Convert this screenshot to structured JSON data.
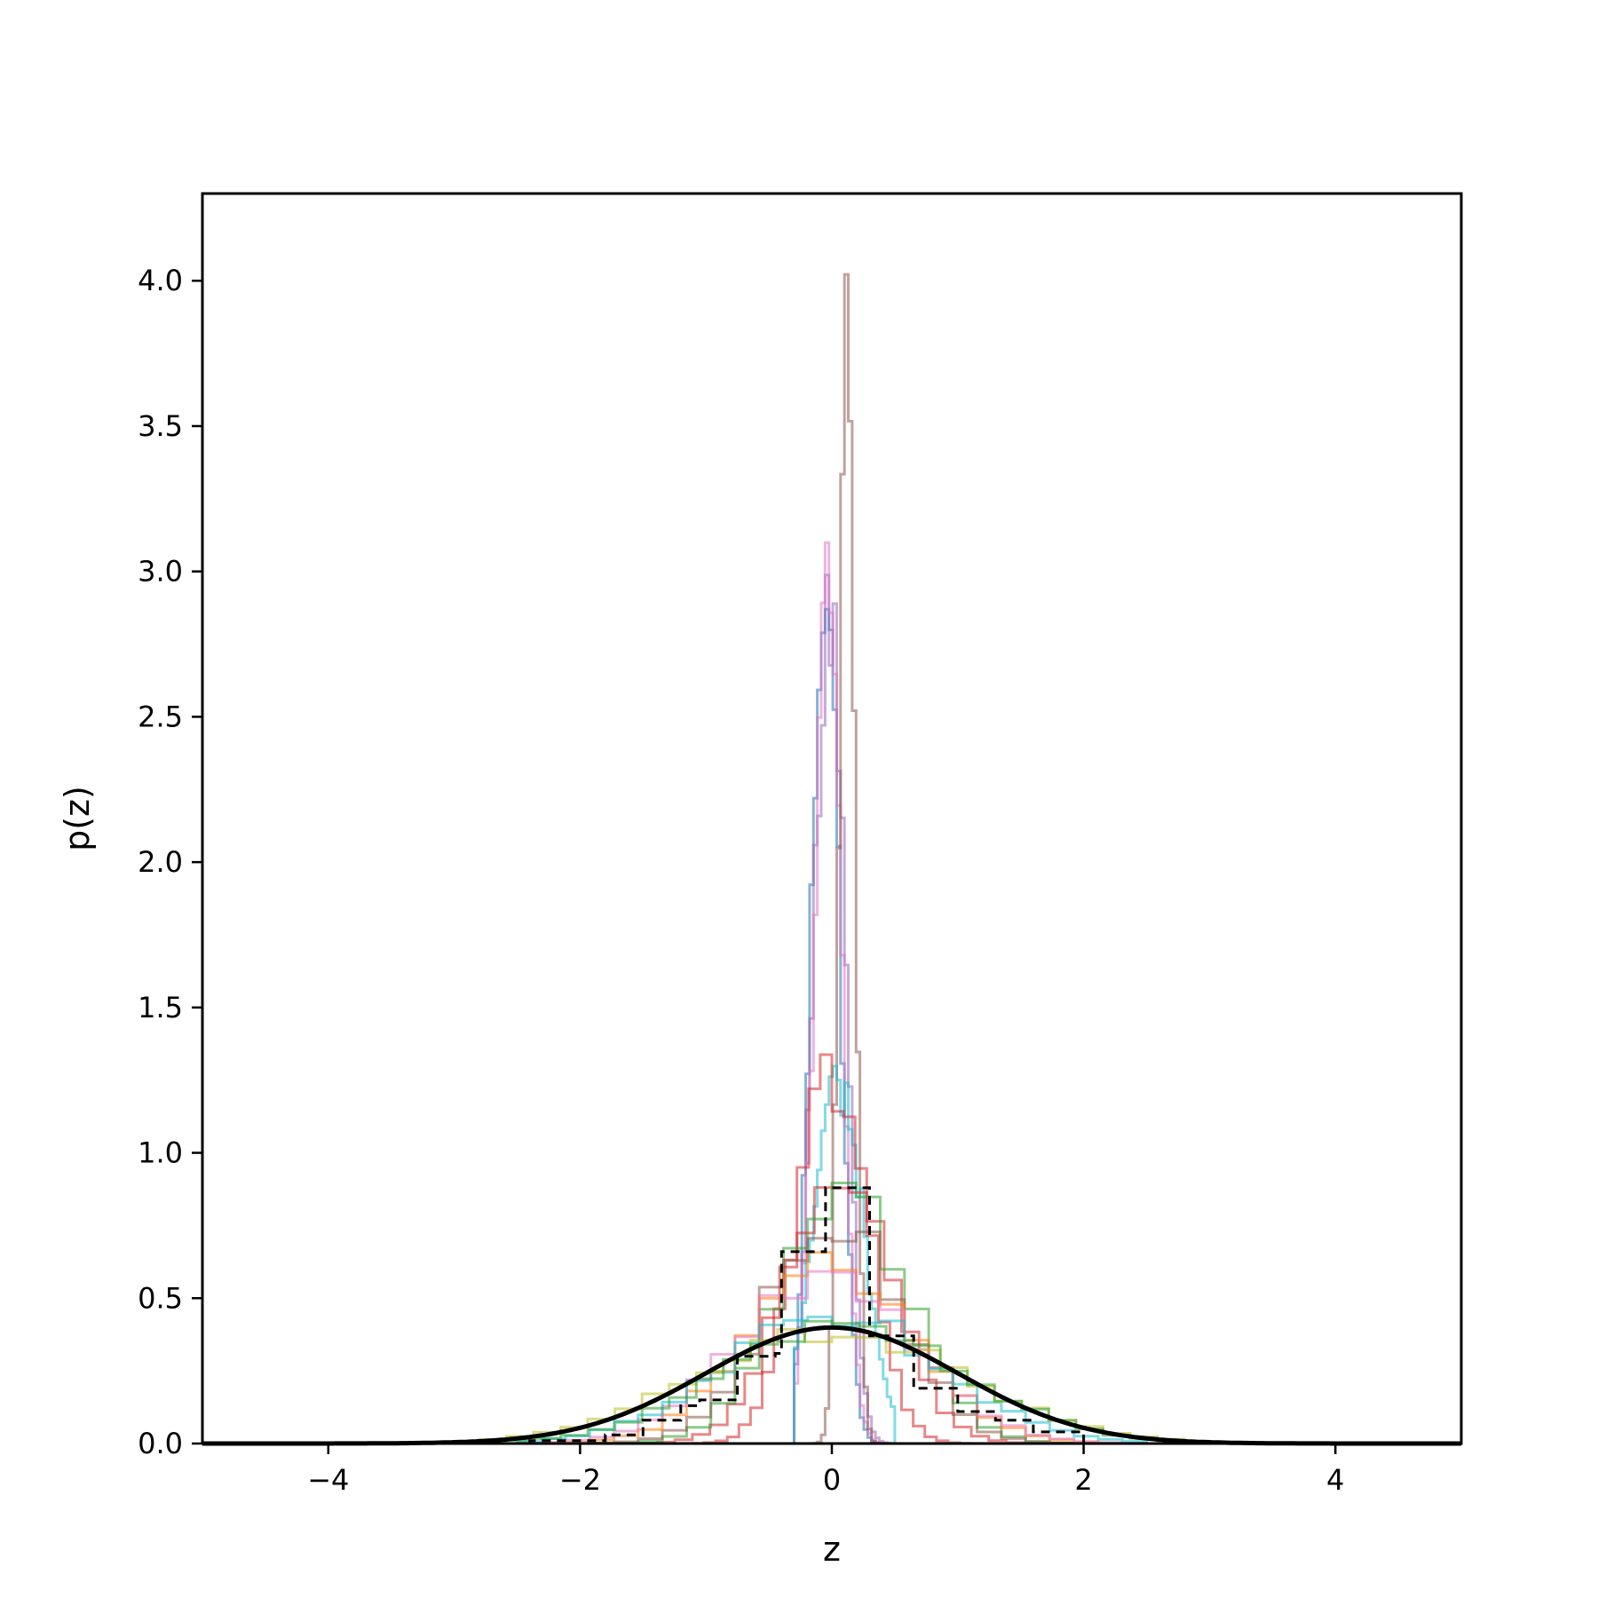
{
  "chart_data": {
    "type": "line",
    "title": "",
    "xlabel": "z",
    "ylabel": "p(z)",
    "xlim": [
      -5,
      5
    ],
    "ylim": [
      0,
      4.3
    ],
    "x_ticks": [
      -4,
      -2,
      0,
      2,
      4
    ],
    "x_tick_labels": [
      "−4",
      "−2",
      "0",
      "2",
      "4"
    ],
    "y_ticks": [
      0.0,
      0.5,
      1.0,
      1.5,
      2.0,
      2.5,
      3.0,
      3.5,
      4.0
    ],
    "y_tick_labels": [
      "0.0",
      "0.5",
      "1.0",
      "1.5",
      "2.0",
      "2.5",
      "3.0",
      "3.5",
      "4.0"
    ],
    "grid": false,
    "legend": "none",
    "reference_curve": {
      "style": "solid-black",
      "color": "#000000",
      "mu": 0,
      "sigma": 1,
      "x": [
        -5,
        -4.5,
        -4,
        -3.5,
        -3,
        -2.5,
        -2,
        -1.75,
        -1.5,
        -1.25,
        -1,
        -0.75,
        -0.5,
        -0.25,
        0,
        0.25,
        0.5,
        0.75,
        1,
        1.25,
        1.5,
        1.75,
        2,
        2.5,
        3,
        3.5,
        4,
        4.5,
        5
      ],
      "y": [
        0.0,
        0.0,
        0.0001,
        0.0009,
        0.0044,
        0.0175,
        0.054,
        0.0863,
        0.1295,
        0.1826,
        0.242,
        0.3011,
        0.3521,
        0.3867,
        0.3989,
        0.3867,
        0.3521,
        0.3011,
        0.242,
        0.1826,
        0.1295,
        0.0863,
        0.054,
        0.0175,
        0.0044,
        0.0009,
        0.0001,
        0.0,
        0.0
      ]
    },
    "aggregate_histogram": {
      "style": "dashed-black",
      "color": "#000000",
      "bin_edges": [
        -2.4,
        -2.1,
        -1.8,
        -1.5,
        -1.2,
        -1.05,
        -0.75,
        -0.45,
        -0.4,
        -0.05,
        0.3,
        0.6,
        0.65,
        0.95,
        1.0,
        1.3,
        1.6,
        2.0
      ],
      "values": [
        0.01,
        0.01,
        0.03,
        0.08,
        0.13,
        0.15,
        0.3,
        0.31,
        0.66,
        0.88,
        0.37,
        0.37,
        0.19,
        0.19,
        0.11,
        0.08,
        0.04
      ]
    },
    "series": [
      {
        "color": "#1f77b4",
        "x_range": [
          -0.3,
          0.5
        ],
        "peak_x": -0.05,
        "peak": 3.03,
        "width": 0.11
      },
      {
        "color": "#9467bd",
        "x_range": [
          -0.3,
          0.5
        ],
        "peak_x": -0.02,
        "peak": 2.96,
        "width": 0.12
      },
      {
        "color": "#e377c2",
        "x_range": [
          -0.3,
          0.5
        ],
        "peak_x": -0.03,
        "peak": 2.85,
        "width": 0.11
      },
      {
        "color": "#8c564b",
        "x_range": [
          -0.3,
          0.5
        ],
        "peak_x": 0.12,
        "peak": 4.11,
        "width": 0.06
      },
      {
        "color": "#17becf",
        "x_range": [
          -0.3,
          0.5
        ],
        "peak_x": 0.05,
        "peak": 1.25,
        "width": 0.2
      },
      {
        "color": "#d62728",
        "x_range": [
          -1.2,
          1.2
        ],
        "peak_x": 0.0,
        "peak": 1.27,
        "width": 0.28
      },
      {
        "color": "#d62728",
        "x_range": [
          -1.8,
          1.8
        ],
        "peak_x": 0.05,
        "peak": 0.9,
        "width": 0.42
      },
      {
        "color": "#2ca02c",
        "x_range": [
          -2.5,
          2.5
        ],
        "peak_x": 0.1,
        "peak": 0.86,
        "width": 0.5
      },
      {
        "color": "#8c564b",
        "x_range": [
          -2.5,
          2.5
        ],
        "peak_x": 0.0,
        "peak": 0.78,
        "width": 0.52
      },
      {
        "color": "#ff7f0e",
        "x_range": [
          -2.5,
          2.5
        ],
        "peak_x": 0.0,
        "peak": 0.62,
        "width": 0.65
      },
      {
        "color": "#e377c2",
        "x_range": [
          -2.5,
          2.5
        ],
        "peak_x": -0.05,
        "peak": 0.58,
        "width": 0.7
      },
      {
        "color": "#17becf",
        "x_range": [
          -2.5,
          2.5
        ],
        "peak_x": 0.0,
        "peak": 0.45,
        "width": 0.85
      },
      {
        "color": "#bcbd22",
        "x_range": [
          -2.8,
          2.8
        ],
        "peak_x": 0.0,
        "peak": 0.38,
        "width": 1.05
      },
      {
        "color": "#2ca02c",
        "x_range": [
          -2.8,
          2.8
        ],
        "peak_x": 0.1,
        "peak": 0.4,
        "width": 0.95
      }
    ]
  }
}
